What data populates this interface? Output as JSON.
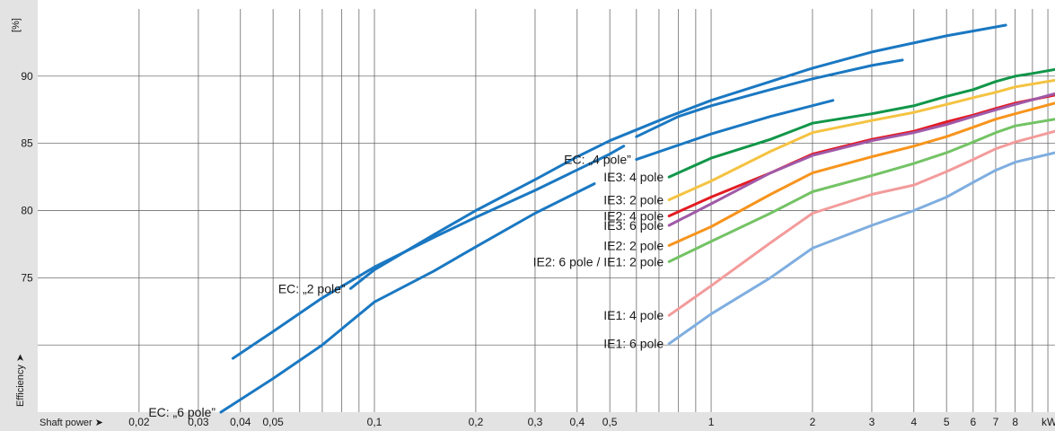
{
  "chart_data": {
    "type": "line",
    "x_scale": "log",
    "xlabel": "Shaft power ➤",
    "x_unit": "kW",
    "ylabel": "Efficiency ➤",
    "y_unit": "[%]",
    "xlim": [
      0.01,
      10.5
    ],
    "ylim": [
      65,
      95
    ],
    "grid": true,
    "x_ticks": [
      {
        "value": 0.02,
        "label": "0,02"
      },
      {
        "value": 0.03,
        "label": "0,03"
      },
      {
        "value": 0.04,
        "label": "0,04"
      },
      {
        "value": 0.05,
        "label": "0,05"
      },
      {
        "value": 0.1,
        "label": "0,1"
      },
      {
        "value": 0.2,
        "label": "0,2"
      },
      {
        "value": 0.3,
        "label": "0,3"
      },
      {
        "value": 0.4,
        "label": "0,4"
      },
      {
        "value": 0.5,
        "label": "0,5"
      },
      {
        "value": 1,
        "label": "1"
      },
      {
        "value": 2,
        "label": "2"
      },
      {
        "value": 3,
        "label": "3"
      },
      {
        "value": 4,
        "label": "4"
      },
      {
        "value": 5,
        "label": "5"
      },
      {
        "value": 6,
        "label": "6"
      },
      {
        "value": 7,
        "label": "7"
      },
      {
        "value": 8,
        "label": "8"
      }
    ],
    "x_gridlines": [
      0.02,
      0.03,
      0.04,
      0.05,
      0.06,
      0.07,
      0.08,
      0.09,
      0.1,
      0.2,
      0.3,
      0.4,
      0.5,
      0.6,
      0.7,
      0.8,
      0.9,
      1,
      2,
      3,
      4,
      5,
      6,
      7,
      8,
      9,
      10
    ],
    "y_ticks": [
      {
        "value": 75,
        "label": "75"
      },
      {
        "value": 80,
        "label": "80"
      },
      {
        "value": 85,
        "label": "85"
      },
      {
        "value": 90,
        "label": "90"
      }
    ],
    "y_gridlines": [
      70,
      75,
      80,
      85,
      90
    ],
    "series": [
      {
        "name": "EC: „2 pole”",
        "color": "#1a78c2",
        "label_anchor": "start",
        "x": [
          0.085,
          0.1,
          0.15,
          0.2,
          0.3,
          0.4,
          0.5,
          0.75,
          1,
          1.5,
          2,
          3,
          5,
          7.5
        ],
        "y": [
          74.2,
          75.6,
          78.2,
          80.0,
          82.3,
          84.0,
          85.2,
          87.0,
          88.2,
          89.6,
          90.6,
          91.8,
          93.0,
          93.8
        ]
      },
      {
        "name": "",
        "color": "#1a78c2",
        "x": [
          0.038,
          0.05,
          0.07,
          0.1,
          0.15,
          0.2,
          0.3,
          0.5,
          0.55
        ],
        "y": [
          69.0,
          71.0,
          73.5,
          75.8,
          78.0,
          79.5,
          81.5,
          84.2,
          84.8
        ]
      },
      {
        "name": "",
        "color": "#1a78c2",
        "x": [
          0.6,
          0.8,
          1,
          1.5,
          2,
          3,
          3.7
        ],
        "y": [
          85.5,
          87.0,
          87.8,
          89.0,
          89.8,
          90.8,
          91.2
        ]
      },
      {
        "name": "EC: „4 pole”",
        "color": "#1a78c2",
        "x": [
          0.6,
          1,
          1.5,
          2.3
        ],
        "y": [
          83.8,
          85.7,
          87.0,
          88.2
        ]
      },
      {
        "name": "EC: „6 pole”",
        "color": "#1a78c2",
        "x": [
          0.035,
          0.05,
          0.07,
          0.1,
          0.15,
          0.2,
          0.3,
          0.45
        ],
        "y": [
          65.0,
          67.5,
          70.0,
          73.2,
          75.5,
          77.3,
          79.8,
          82.0
        ]
      },
      {
        "name": "IE3: 4 pole",
        "color": "#119649",
        "x": [
          0.75,
          1,
          1.5,
          2,
          3,
          4,
          5,
          6,
          7,
          8,
          9,
          10.5
        ],
        "y": [
          82.5,
          83.9,
          85.3,
          86.5,
          87.2,
          87.8,
          88.5,
          89.0,
          89.6,
          90.0,
          90.2,
          90.5
        ]
      },
      {
        "name": "IE3: 2 pole",
        "color": "#f5c342",
        "x": [
          0.75,
          1,
          1.5,
          2,
          3,
          4,
          5,
          6,
          7,
          8,
          10.5
        ],
        "y": [
          80.8,
          82.2,
          84.4,
          85.8,
          86.7,
          87.3,
          87.9,
          88.4,
          88.8,
          89.2,
          89.7
        ]
      },
      {
        "name": "IE2: 4 pole",
        "color": "#e31b23",
        "x": [
          0.75,
          1,
          1.5,
          2,
          3,
          4,
          5,
          6,
          7,
          8,
          10.5
        ],
        "y": [
          79.6,
          81.0,
          82.8,
          84.2,
          85.3,
          85.9,
          86.6,
          87.1,
          87.6,
          88.0,
          88.6
        ]
      },
      {
        "name": "IE3: 6 pole",
        "color": "#a05aa8",
        "x": [
          0.75,
          1,
          1.5,
          2,
          3,
          4,
          5,
          6,
          7,
          8,
          10.5
        ],
        "y": [
          78.9,
          80.5,
          82.8,
          84.1,
          85.2,
          85.8,
          86.4,
          87.0,
          87.5,
          87.9,
          88.7
        ]
      },
      {
        "name": "IE2: 2 pole",
        "color": "#f7941d",
        "x": [
          0.75,
          1,
          1.5,
          2,
          3,
          4,
          5,
          6,
          7,
          8,
          10.5
        ],
        "y": [
          77.4,
          78.8,
          81.2,
          82.8,
          84.0,
          84.8,
          85.5,
          86.2,
          86.8,
          87.2,
          88.0
        ]
      },
      {
        "name": "IE2: 6 pole / IE1: 2 pole",
        "color": "#74c365",
        "x": [
          0.75,
          1,
          1.5,
          2,
          3,
          4,
          5,
          6,
          7,
          8,
          10.5
        ],
        "y": [
          76.2,
          77.7,
          79.8,
          81.4,
          82.6,
          83.5,
          84.3,
          85.1,
          85.8,
          86.3,
          86.8
        ]
      },
      {
        "name": "IE1: 4 pole",
        "color": "#f39b9b",
        "x": [
          0.75,
          1,
          1.5,
          2,
          3,
          4,
          5,
          6,
          7,
          8,
          10.5
        ],
        "y": [
          72.2,
          74.4,
          77.6,
          79.8,
          81.2,
          81.9,
          82.9,
          83.8,
          84.6,
          85.1,
          85.9
        ]
      },
      {
        "name": "IE1: 6 pole",
        "color": "#7faee0",
        "x": [
          0.75,
          1,
          1.5,
          2,
          3,
          4,
          5,
          6,
          7,
          8,
          10.5
        ],
        "y": [
          70.1,
          72.3,
          75.0,
          77.2,
          78.9,
          80.0,
          81.0,
          82.1,
          83.0,
          83.6,
          84.3
        ]
      }
    ],
    "annotations": [
      {
        "series": "EC: „2 pole”",
        "text": "EC: „2 pole”"
      },
      {
        "series": "EC: „4 pole”",
        "text": "EC: „4 pole”"
      },
      {
        "series": "EC: „6 pole”",
        "text": "EC: „6 pole”"
      },
      {
        "series": "IE3: 4 pole",
        "text": "IE3: 4 pole"
      },
      {
        "series": "IE3: 2 pole",
        "text": "IE3: 2 pole"
      },
      {
        "series": "IE2: 4 pole",
        "text": "IE2: 4 pole"
      },
      {
        "series": "IE3: 6 pole",
        "text": "IE3: 6 pole"
      },
      {
        "series": "IE2: 2 pole",
        "text": "IE2: 2 pole"
      },
      {
        "series": "IE2: 6 pole / IE1: 2 pole",
        "text": "IE2: 6 pole / IE1: 2 pole"
      },
      {
        "series": "IE1: 4 pole",
        "text": "IE1: 4 pole"
      },
      {
        "series": "IE1: 6 pole",
        "text": "IE1: 6 pole"
      }
    ],
    "colors": {
      "background": "#ffffff",
      "grid": "#555555",
      "axis_band": "#e3e3e3"
    }
  }
}
